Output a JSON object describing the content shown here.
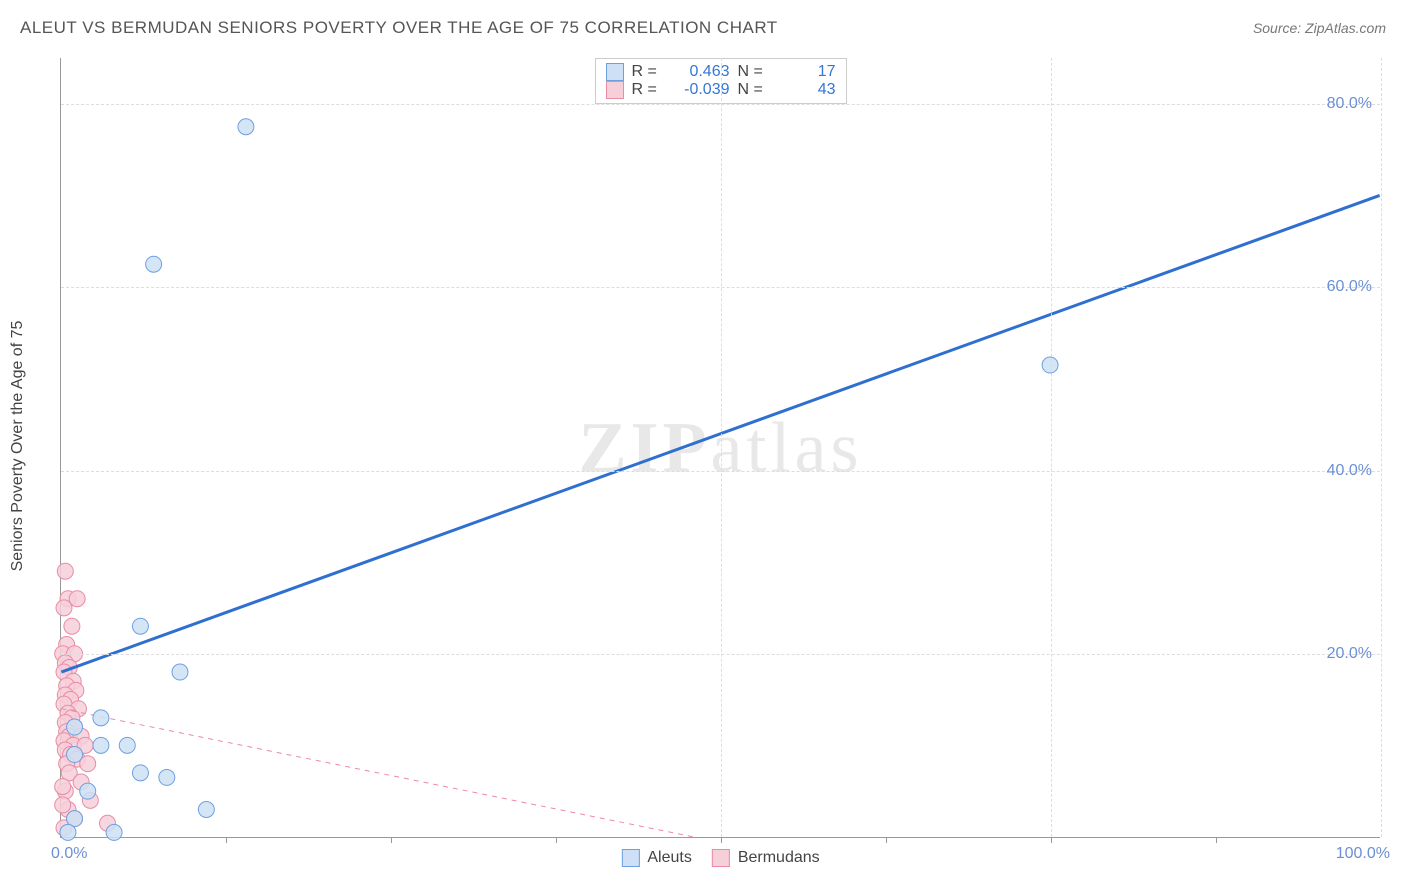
{
  "title": "ALEUT VS BERMUDAN SENIORS POVERTY OVER THE AGE OF 75 CORRELATION CHART",
  "source_label": "Source: ZipAtlas.com",
  "y_axis_title": "Seniors Poverty Over the Age of 75",
  "watermark": "ZIPatlas",
  "chart": {
    "type": "scatter",
    "xlim": [
      0,
      100
    ],
    "ylim": [
      0,
      85
    ],
    "x_ticks": [
      0,
      100
    ],
    "x_tick_labels": [
      "0.0%",
      "100.0%"
    ],
    "y_ticks": [
      20,
      40,
      60,
      80
    ],
    "y_tick_labels": [
      "20.0%",
      "40.0%",
      "60.0%",
      "80.0%"
    ],
    "v_grid_at": [
      50,
      75,
      100
    ],
    "background_color": "#ffffff",
    "grid_color": "#dddddd",
    "series": {
      "aleuts": {
        "label": "Aleuts",
        "marker_fill": "#cde0f5",
        "marker_stroke": "#6ea0e0",
        "marker_radius": 8,
        "line_color": "#2f6fd0",
        "line_width": 3,
        "line_dash": "none",
        "R": "0.463",
        "N": "17",
        "trend": {
          "x1": 0,
          "y1": 18,
          "x2": 100,
          "y2": 70
        },
        "points": [
          {
            "x": 14,
            "y": 77.5
          },
          {
            "x": 7,
            "y": 62.5
          },
          {
            "x": 75,
            "y": 51.5
          },
          {
            "x": 6,
            "y": 23
          },
          {
            "x": 9,
            "y": 18
          },
          {
            "x": 3,
            "y": 13
          },
          {
            "x": 1,
            "y": 12
          },
          {
            "x": 5,
            "y": 10
          },
          {
            "x": 3,
            "y": 10
          },
          {
            "x": 1,
            "y": 9
          },
          {
            "x": 6,
            "y": 7
          },
          {
            "x": 8,
            "y": 6.5
          },
          {
            "x": 2,
            "y": 5
          },
          {
            "x": 11,
            "y": 3
          },
          {
            "x": 1,
            "y": 2
          },
          {
            "x": 0.5,
            "y": 0.5
          },
          {
            "x": 4,
            "y": 0.5
          }
        ]
      },
      "bermudans": {
        "label": "Bermudans",
        "marker_fill": "#f6cfd9",
        "marker_stroke": "#e98ba5",
        "marker_radius": 8,
        "line_color": "#e98ba5",
        "line_width": 1,
        "line_dash": "5,5",
        "R": "-0.039",
        "N": "43",
        "trend": {
          "x1": 0,
          "y1": 14,
          "x2": 48,
          "y2": 0
        },
        "points": [
          {
            "x": 0.3,
            "y": 29
          },
          {
            "x": 0.5,
            "y": 26
          },
          {
            "x": 1.2,
            "y": 26
          },
          {
            "x": 0.2,
            "y": 25
          },
          {
            "x": 0.8,
            "y": 23
          },
          {
            "x": 0.4,
            "y": 21
          },
          {
            "x": 0.1,
            "y": 20
          },
          {
            "x": 1.0,
            "y": 20
          },
          {
            "x": 0.3,
            "y": 19
          },
          {
            "x": 0.6,
            "y": 18.5
          },
          {
            "x": 0.2,
            "y": 18
          },
          {
            "x": 0.9,
            "y": 17
          },
          {
            "x": 0.4,
            "y": 16.5
          },
          {
            "x": 1.1,
            "y": 16
          },
          {
            "x": 0.3,
            "y": 15.5
          },
          {
            "x": 0.7,
            "y": 15
          },
          {
            "x": 0.2,
            "y": 14.5
          },
          {
            "x": 1.3,
            "y": 14
          },
          {
            "x": 0.5,
            "y": 13.5
          },
          {
            "x": 0.8,
            "y": 13
          },
          {
            "x": 0.3,
            "y": 12.5
          },
          {
            "x": 1.0,
            "y": 12
          },
          {
            "x": 0.4,
            "y": 11.5
          },
          {
            "x": 0.6,
            "y": 11
          },
          {
            "x": 1.5,
            "y": 11
          },
          {
            "x": 0.2,
            "y": 10.5
          },
          {
            "x": 0.9,
            "y": 10
          },
          {
            "x": 1.8,
            "y": 10
          },
          {
            "x": 0.3,
            "y": 9.5
          },
          {
            "x": 0.7,
            "y": 9
          },
          {
            "x": 1.2,
            "y": 8.5
          },
          {
            "x": 0.4,
            "y": 8
          },
          {
            "x": 2.0,
            "y": 8
          },
          {
            "x": 0.6,
            "y": 7
          },
          {
            "x": 1.5,
            "y": 6
          },
          {
            "x": 0.3,
            "y": 5
          },
          {
            "x": 2.2,
            "y": 4
          },
          {
            "x": 0.5,
            "y": 3
          },
          {
            "x": 1.0,
            "y": 2
          },
          {
            "x": 3.5,
            "y": 1.5
          },
          {
            "x": 0.2,
            "y": 1
          },
          {
            "x": 0.1,
            "y": 5.5
          },
          {
            "x": 0.1,
            "y": 3.5
          }
        ]
      }
    }
  }
}
